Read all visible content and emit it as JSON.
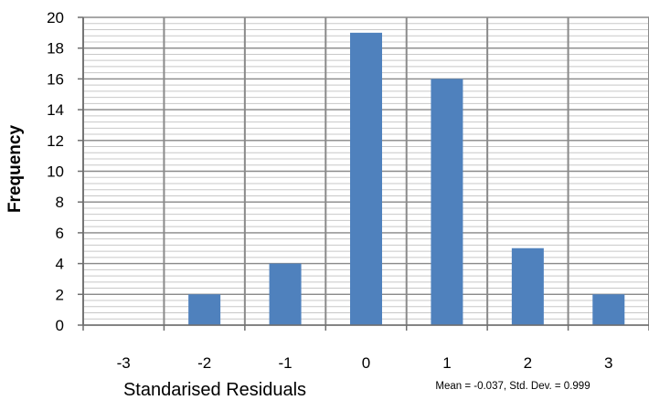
{
  "chart_data": {
    "type": "bar",
    "categories": [
      "-3",
      "-2",
      "-1",
      "0",
      "1",
      "2",
      "3"
    ],
    "values": [
      0,
      2,
      4,
      19,
      16,
      5,
      2
    ],
    "xlabel": "Standarised Residuals",
    "ylabel": "Frequency",
    "ylim": [
      0,
      20
    ],
    "ytick_step": 2,
    "annotation": "Mean = -0.037, Std. Dev. = 0.999",
    "bar_color": "#4f81bd",
    "grid": true
  }
}
